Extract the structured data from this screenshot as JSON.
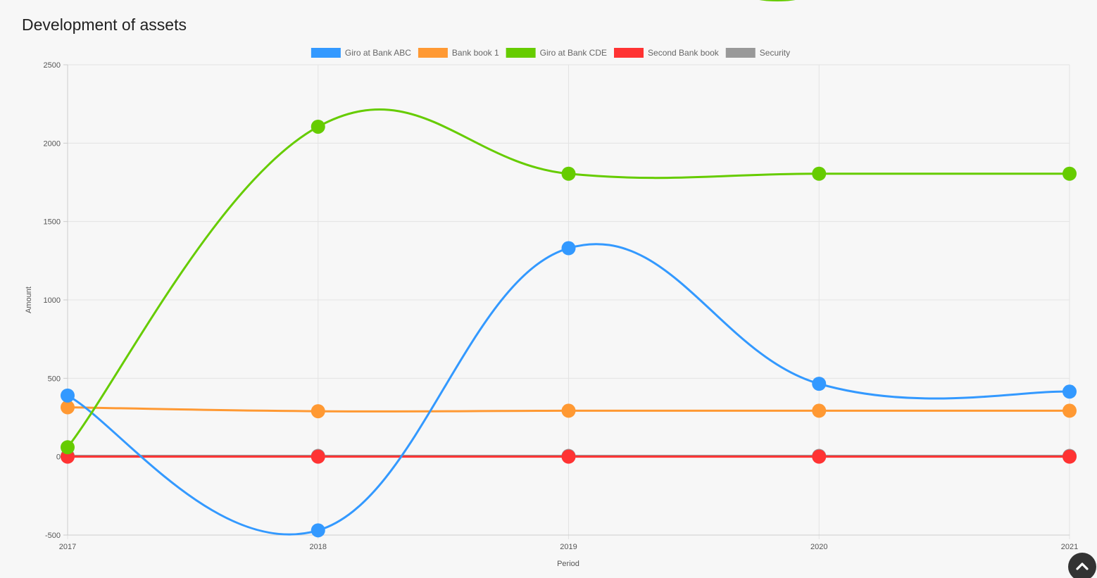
{
  "page": {
    "title": "Development of assets"
  },
  "chart_data": {
    "type": "line",
    "categories": [
      "2017",
      "2018",
      "2019",
      "2020",
      "2021"
    ],
    "xlabel": "Period",
    "ylabel": "Amount",
    "ylim": [
      -500,
      2500
    ],
    "yticks": [
      -500,
      0,
      500,
      1000,
      1500,
      2000,
      2500
    ],
    "ytick_labels": [
      "-500",
      "0",
      "500",
      "1000",
      "1500",
      "2000",
      "2500"
    ],
    "grid": true,
    "legend_position": "top-center",
    "curve": "smooth",
    "series": [
      {
        "name": "Giro at Bank ABC",
        "color": "#3399ff",
        "values": [
          390,
          -470,
          1330,
          465,
          415
        ]
      },
      {
        "name": "Bank book 1",
        "color": "#ff9933",
        "values": [
          315,
          290,
          293,
          293,
          293
        ]
      },
      {
        "name": "Giro at Bank CDE",
        "color": "#66cc00",
        "values": [
          60,
          2105,
          1805,
          1805,
          1805
        ]
      },
      {
        "name": "Second Bank book",
        "color": "#ff3333",
        "values": [
          0,
          0,
          0,
          0,
          0
        ]
      },
      {
        "name": "Security",
        "color": "#999999",
        "values": [
          5,
          5,
          5,
          5,
          5
        ]
      }
    ],
    "draw_order": [
      4,
      3,
      1,
      0,
      2
    ]
  },
  "scroll_top": {
    "icon": "chevron-up-icon"
  }
}
